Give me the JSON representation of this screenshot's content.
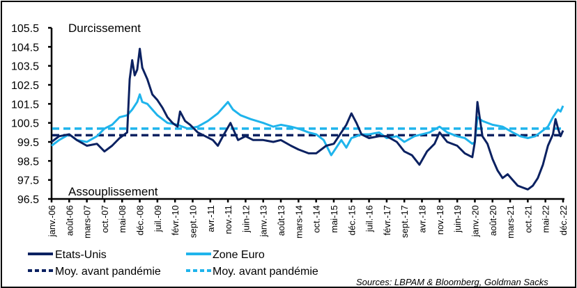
{
  "chart_data": {
    "type": "line",
    "title": "",
    "xlabel": "",
    "ylabel": "",
    "ylim": [
      96.5,
      105.5
    ],
    "yticks": [
      "105.5",
      "104.5",
      "103.5",
      "102.5",
      "101.5",
      "100.5",
      "99.5",
      "98.5",
      "97.5",
      "96.5"
    ],
    "ytick_values": [
      105.5,
      104.5,
      103.5,
      102.5,
      101.5,
      100.5,
      99.5,
      98.5,
      97.5,
      96.5
    ],
    "xlim_months": [
      0,
      203
    ],
    "x_tick_labels": [
      "janv.-06",
      "août-06",
      "mars-07",
      "oct.-07",
      "mai-08",
      "déc.-08",
      "juil.-09",
      "févr.-10",
      "sept.-10",
      "avr.-11",
      "nov.-11",
      "juin-12",
      "janv.-13",
      "août-13",
      "mars-14",
      "oct.-14",
      "mai-15",
      "déc.-15",
      "juil.-16",
      "févr.-17",
      "sept.-17",
      "avr.-18",
      "nov.-18",
      "juin-19",
      "janv.-20",
      "août-20",
      "mars-21",
      "oct.-21",
      "mai-22",
      "déc.-22"
    ],
    "x_tick_months": [
      0,
      7,
      14,
      21,
      28,
      35,
      42,
      49,
      56,
      63,
      70,
      77,
      84,
      91,
      98,
      105,
      112,
      119,
      126,
      133,
      140,
      147,
      154,
      161,
      168,
      175,
      182,
      189,
      196,
      203
    ],
    "grid": false,
    "annotations": {
      "top": "Durcissement",
      "bottom": "Assouplissement"
    },
    "series": [
      {
        "name": "Etats-Unis",
        "color": "#0b2161",
        "style": "solid",
        "x_months": [
          0,
          3,
          7,
          10,
          14,
          18,
          21,
          24,
          27,
          29,
          30,
          31,
          32,
          33,
          34,
          35,
          36,
          38,
          40,
          42,
          44,
          46,
          48,
          50,
          51,
          53,
          55,
          58,
          61,
          64,
          66,
          68,
          71,
          74,
          77,
          80,
          84,
          88,
          91,
          95,
          98,
          102,
          105,
          109,
          112,
          115,
          117,
          119,
          121,
          123,
          126,
          130,
          133,
          137,
          140,
          143,
          146,
          149,
          152,
          154,
          157,
          161,
          164,
          167,
          168,
          169,
          171,
          173,
          175,
          177,
          179,
          181,
          183,
          185,
          187,
          189,
          191,
          193,
          195,
          197,
          199,
          200,
          201,
          202,
          203
        ],
        "values": [
          99.5,
          99.8,
          99.9,
          99.6,
          99.3,
          99.4,
          99.0,
          99.3,
          99.7,
          99.9,
          100.0,
          102.8,
          103.8,
          103.0,
          103.3,
          104.4,
          103.4,
          102.8,
          102.0,
          101.7,
          101.3,
          100.8,
          100.5,
          100.3,
          101.1,
          100.6,
          100.4,
          100.0,
          99.8,
          99.6,
          99.3,
          99.8,
          100.5,
          99.6,
          99.8,
          99.6,
          99.6,
          99.5,
          99.6,
          99.3,
          99.1,
          98.9,
          98.9,
          99.3,
          99.4,
          100.0,
          100.4,
          101.0,
          100.5,
          99.9,
          99.7,
          99.8,
          99.8,
          99.5,
          99.0,
          98.8,
          98.3,
          99.0,
          99.4,
          100.0,
          99.5,
          99.3,
          98.9,
          98.7,
          99.5,
          101.6,
          99.8,
          99.4,
          98.6,
          98.0,
          97.6,
          97.8,
          97.5,
          97.2,
          97.1,
          97.0,
          97.2,
          97.6,
          98.3,
          99.3,
          99.9,
          100.7,
          100.2,
          99.8,
          100.1
        ]
      },
      {
        "name": "Zone Euro",
        "color": "#1fb4ec",
        "style": "solid",
        "x_months": [
          0,
          3,
          7,
          10,
          14,
          18,
          21,
          24,
          27,
          30,
          32,
          34,
          35,
          36,
          38,
          40,
          42,
          46,
          50,
          54,
          58,
          62,
          66,
          68,
          70,
          72,
          75,
          79,
          84,
          88,
          91,
          95,
          98,
          102,
          105,
          108,
          111,
          113,
          115,
          117,
          119,
          121,
          123,
          126,
          130,
          133,
          137,
          140,
          144,
          147,
          150,
          154,
          157,
          161,
          164,
          167,
          168,
          169,
          171,
          175,
          179,
          183,
          186,
          189,
          192,
          195,
          197,
          199,
          201,
          202,
          203
        ],
        "values": [
          99.3,
          99.6,
          99.9,
          99.6,
          99.5,
          99.8,
          100.2,
          100.4,
          100.8,
          100.9,
          101.2,
          101.6,
          102.0,
          101.6,
          101.5,
          101.2,
          100.9,
          100.5,
          100.4,
          100.2,
          100.3,
          100.6,
          101.0,
          101.3,
          101.6,
          101.2,
          100.9,
          100.7,
          100.5,
          100.3,
          100.4,
          100.3,
          100.2,
          100.0,
          99.9,
          99.6,
          98.8,
          99.2,
          99.6,
          99.2,
          99.7,
          99.8,
          99.9,
          99.9,
          100.0,
          99.7,
          99.8,
          99.5,
          99.8,
          99.9,
          100.0,
          100.3,
          100.0,
          99.8,
          99.7,
          99.4,
          99.5,
          100.8,
          100.6,
          100.4,
          100.3,
          100.0,
          99.8,
          99.7,
          99.8,
          100.1,
          100.3,
          100.8,
          101.2,
          101.1,
          101.4
        ]
      },
      {
        "name": "Moy. avant pandémie",
        "color": "#0b2161",
        "style": "dashed",
        "constant": 99.85
      },
      {
        "name": "Moy. avant pandémie",
        "color": "#1fb4ec",
        "style": "dashed",
        "constant": 100.2
      }
    ],
    "legend": {
      "placement": "bottom",
      "entries": [
        "Etats-Unis",
        "Zone Euro",
        "Moy. avant pandémie",
        "Moy. avant pandémie"
      ]
    },
    "source": "Sources: LBPAM & Bloomberg, Goldman Sacks"
  },
  "colors": {
    "us": "#0b2161",
    "euro": "#1fb4ec",
    "axis": "#000000"
  }
}
